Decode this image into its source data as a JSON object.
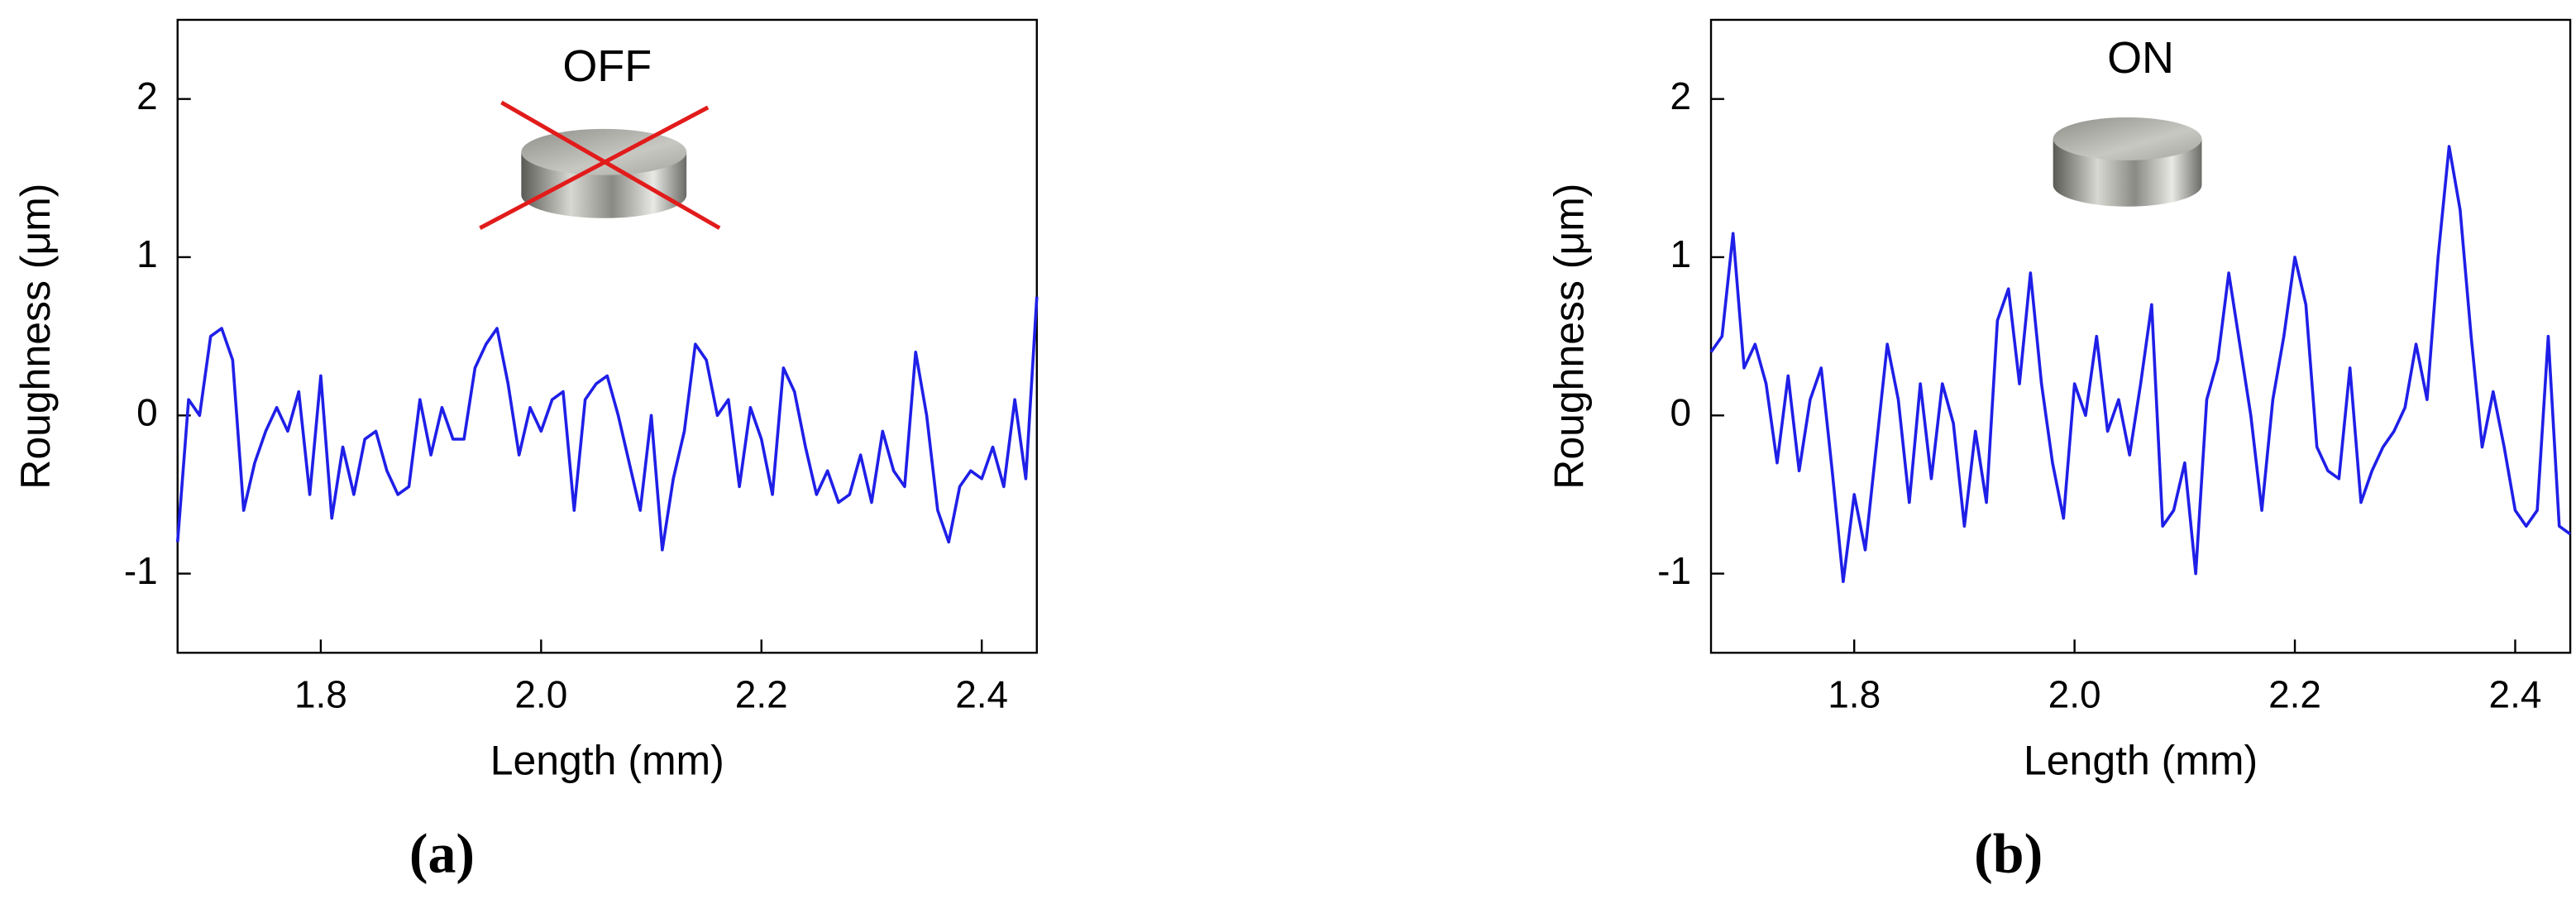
{
  "chart_data": [
    {
      "type": "line",
      "annotation": "OFF",
      "caption": "(a)",
      "x_label": "Length (mm)",
      "y_label": "Roughness (μm)",
      "color": "#1f1fe8",
      "xlim": [
        1.67,
        2.45
      ],
      "ylim": [
        -1.5,
        2.5
      ],
      "xticks": [
        1.8,
        {
          "value": 2,
          "label": "2.0"
        },
        2.2,
        2.4
      ],
      "yticks": [
        -1,
        0,
        1,
        2
      ],
      "x": [
        1.67,
        1.68,
        1.69,
        1.7,
        1.71,
        1.72,
        1.73,
        1.74,
        1.75,
        1.76,
        1.77,
        1.78,
        1.79,
        1.8,
        1.81,
        1.82,
        1.83,
        1.84,
        1.85,
        1.86,
        1.87,
        1.88,
        1.89,
        1.9,
        1.91,
        1.92,
        1.93,
        1.94,
        1.95,
        1.96,
        1.97,
        1.98,
        1.99,
        2.0,
        2.01,
        2.02,
        2.03,
        2.04,
        2.05,
        2.06,
        2.07,
        2.08,
        2.09,
        2.1,
        2.11,
        2.12,
        2.13,
        2.14,
        2.15,
        2.16,
        2.17,
        2.18,
        2.19,
        2.2,
        2.21,
        2.22,
        2.23,
        2.24,
        2.25,
        2.26,
        2.27,
        2.28,
        2.29,
        2.3,
        2.31,
        2.32,
        2.33,
        2.34,
        2.35,
        2.36,
        2.37,
        2.38,
        2.39,
        2.4,
        2.41,
        2.42,
        2.43,
        2.44,
        2.45
      ],
      "values": [
        -0.8,
        0.1,
        0.0,
        0.5,
        0.55,
        0.35,
        -0.6,
        -0.3,
        -0.1,
        0.05,
        -0.1,
        0.15,
        -0.5,
        0.25,
        -0.65,
        -0.2,
        -0.5,
        -0.15,
        -0.1,
        -0.35,
        -0.5,
        -0.45,
        0.1,
        -0.25,
        0.05,
        -0.15,
        -0.15,
        0.3,
        0.45,
        0.55,
        0.2,
        -0.25,
        0.05,
        -0.1,
        0.1,
        0.15,
        -0.6,
        0.1,
        0.2,
        0.25,
        0.0,
        -0.3,
        -0.6,
        0.0,
        -0.85,
        -0.4,
        -0.1,
        0.45,
        0.35,
        0.0,
        0.1,
        -0.45,
        0.05,
        -0.15,
        -0.5,
        0.3,
        0.15,
        -0.2,
        -0.5,
        -0.35,
        -0.55,
        -0.5,
        -0.25,
        -0.55,
        -0.1,
        -0.35,
        -0.45,
        0.4,
        0.0,
        -0.6,
        -0.8,
        -0.45,
        -0.35,
        -0.4,
        -0.2,
        -0.45,
        0.1,
        -0.4,
        0.75
      ]
    },
    {
      "type": "line",
      "annotation": "ON",
      "caption": "(b)",
      "x_label": "Length (mm)",
      "y_label": "Roughness (μm)",
      "color": "#1f1fe8",
      "xlim": [
        1.67,
        2.45
      ],
      "ylim": [
        -1.5,
        2.5
      ],
      "xticks": [
        1.8,
        {
          "value": 2,
          "label": "2.0"
        },
        2.2,
        2.4
      ],
      "yticks": [
        -1,
        0,
        1,
        2
      ],
      "x": [
        1.67,
        1.68,
        1.69,
        1.7,
        1.71,
        1.72,
        1.73,
        1.74,
        1.75,
        1.76,
        1.77,
        1.78,
        1.79,
        1.8,
        1.81,
        1.82,
        1.83,
        1.84,
        1.85,
        1.86,
        1.87,
        1.88,
        1.89,
        1.9,
        1.91,
        1.92,
        1.93,
        1.94,
        1.95,
        1.96,
        1.97,
        1.98,
        1.99,
        2.0,
        2.01,
        2.02,
        2.03,
        2.04,
        2.05,
        2.06,
        2.07,
        2.08,
        2.09,
        2.1,
        2.11,
        2.12,
        2.13,
        2.14,
        2.15,
        2.16,
        2.17,
        2.18,
        2.19,
        2.2,
        2.21,
        2.22,
        2.23,
        2.24,
        2.25,
        2.26,
        2.27,
        2.28,
        2.29,
        2.3,
        2.31,
        2.32,
        2.33,
        2.34,
        2.35,
        2.36,
        2.37,
        2.38,
        2.39,
        2.4,
        2.41,
        2.42,
        2.43,
        2.44,
        2.45
      ],
      "values": [
        0.4,
        0.5,
        1.15,
        0.3,
        0.45,
        0.2,
        -0.3,
        0.25,
        -0.35,
        0.1,
        0.3,
        -0.35,
        -1.05,
        -0.5,
        -0.85,
        -0.2,
        0.45,
        0.1,
        -0.55,
        0.2,
        -0.4,
        0.2,
        -0.05,
        -0.7,
        -0.1,
        -0.55,
        0.6,
        0.8,
        0.2,
        0.9,
        0.2,
        -0.3,
        -0.65,
        0.2,
        0.0,
        0.5,
        -0.1,
        0.1,
        -0.25,
        0.2,
        0.7,
        -0.7,
        -0.6,
        -0.3,
        -1.0,
        0.1,
        0.35,
        0.9,
        0.45,
        0.0,
        -0.6,
        0.1,
        0.5,
        1.0,
        0.7,
        -0.2,
        -0.35,
        -0.4,
        0.3,
        -0.55,
        -0.35,
        -0.2,
        -0.1,
        0.05,
        0.45,
        0.1,
        1.0,
        1.7,
        1.3,
        0.5,
        -0.2,
        0.15,
        -0.2,
        -0.6,
        -0.7,
        -0.6,
        0.5,
        -0.7,
        -0.75
      ]
    }
  ]
}
